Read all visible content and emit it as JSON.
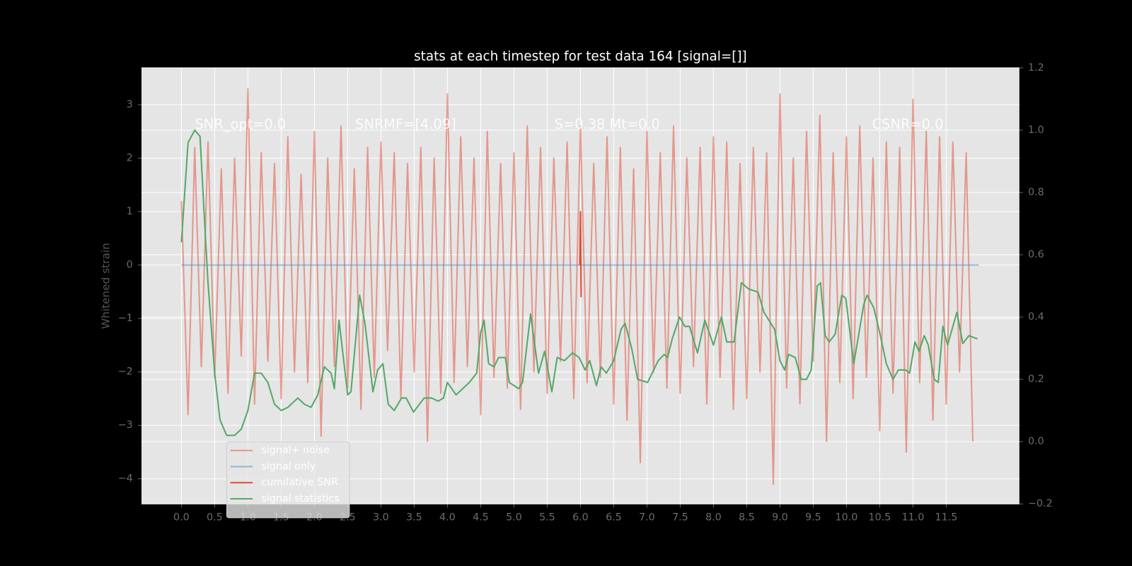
{
  "chart_data": {
    "type": "line",
    "title": "stats at each timestep for test data 164 [signal=[]]",
    "ylabel": "Whitened strain",
    "annotations": [
      "SNR_opt=0.0",
      "SNRMF=[4.09]",
      "S=0.38   Mt=0.0",
      "CSNR=0.0"
    ],
    "xlim": [
      -0.6,
      12.6
    ],
    "ylim": [
      -4.47,
      3.69
    ],
    "y2lim": [
      -0.2,
      1.2
    ],
    "xticks": [
      {
        "value": 0,
        "label": "0.0"
      },
      {
        "value": 0.5,
        "label": "0.5"
      },
      {
        "value": 1,
        "label": "1.0"
      },
      {
        "value": 1.5,
        "label": "1.5"
      },
      {
        "value": 2,
        "label": "2.0"
      },
      {
        "value": 2.5,
        "label": "2.5"
      },
      {
        "value": 3,
        "label": "3.0"
      },
      {
        "value": 3.5,
        "label": "3.5"
      },
      {
        "value": 4,
        "label": "4.0"
      },
      {
        "value": 4.5,
        "label": "4.5"
      },
      {
        "value": 5,
        "label": "5.0"
      },
      {
        "value": 5.5,
        "label": "5.5"
      },
      {
        "value": 6,
        "label": "6.0"
      },
      {
        "value": 6.5,
        "label": "6.5"
      },
      {
        "value": 7,
        "label": "7.0"
      },
      {
        "value": 7.5,
        "label": "7.5"
      },
      {
        "value": 8,
        "label": "8.0"
      },
      {
        "value": 8.5,
        "label": "8.5"
      },
      {
        "value": 9,
        "label": "9.0"
      },
      {
        "value": 9.5,
        "label": "9.5"
      },
      {
        "value": 10,
        "label": "10.0"
      },
      {
        "value": 10.5,
        "label": "10.5"
      },
      {
        "value": 11,
        "label": "11.0"
      },
      {
        "value": 11.5,
        "label": "11.5"
      }
    ],
    "yticks": [
      {
        "value": -4,
        "label": "−4"
      },
      {
        "value": -3,
        "label": "−3"
      },
      {
        "value": -2,
        "label": "−2"
      },
      {
        "value": -1,
        "label": "−1"
      },
      0,
      1,
      2,
      3
    ],
    "y2ticks": [
      {
        "value": -0.2,
        "label": "−0.2"
      },
      {
        "value": 0,
        "label": "0.0"
      },
      {
        "value": 0.2,
        "label": "0.2"
      },
      {
        "value": 0.4,
        "label": "0.4"
      },
      {
        "value": 0.6,
        "label": "0.6"
      },
      {
        "value": 0.8,
        "label": "0.8"
      },
      {
        "value": 1.0,
        "label": "1.0"
      },
      {
        "value": 1.2,
        "label": "1.2"
      }
    ],
    "grid": true,
    "legend": "lower left",
    "series": [
      {
        "name": "signal+ noise",
        "color": "#e24a33",
        "opacity": 0.5,
        "x": [
          0,
          0.1,
          0.2,
          0.3,
          0.4,
          0.5,
          0.6,
          0.7,
          0.8,
          0.9,
          1,
          1.1,
          1.2,
          1.3,
          1.4,
          1.5,
          1.6,
          1.7,
          1.8,
          1.9,
          2,
          2.1,
          2.2,
          2.3,
          2.4,
          2.5,
          2.6,
          2.7,
          2.8,
          2.9,
          3,
          3.1,
          3.2,
          3.3,
          3.4,
          3.5,
          3.6,
          3.7,
          3.8,
          3.9,
          4,
          4.1,
          4.2,
          4.3,
          4.4,
          4.5,
          4.6,
          4.7,
          4.8,
          4.9,
          5,
          5.1,
          5.2,
          5.3,
          5.4,
          5.5,
          5.6,
          5.7,
          5.8,
          5.9,
          6,
          6.1,
          6.2,
          6.3,
          6.4,
          6.5,
          6.6,
          6.7,
          6.8,
          6.9,
          7,
          7.1,
          7.2,
          7.3,
          7.4,
          7.5,
          7.6,
          7.7,
          7.8,
          7.9,
          8,
          8.1,
          8.2,
          8.3,
          8.4,
          8.5,
          8.6,
          8.7,
          8.8,
          8.9,
          9,
          9.1,
          9.2,
          9.3,
          9.4,
          9.5,
          9.6,
          9.7,
          9.8,
          9.9,
          10,
          10.1,
          10.2,
          10.3,
          10.4,
          10.5,
          10.6,
          10.7,
          10.8,
          10.9,
          11,
          11.1,
          11.2,
          11.3,
          11.4,
          11.5,
          11.6,
          11.7,
          11.8,
          11.9
        ],
        "values": [
          1.2,
          -2.8,
          2.2,
          -1.9,
          2.3,
          -2.1,
          1.8,
          -2.4,
          2.0,
          -1.7,
          3.3,
          -2.6,
          2.1,
          -1.8,
          1.9,
          -2.5,
          2.4,
          -2.0,
          1.7,
          -2.2,
          2.5,
          -3.2,
          2.0,
          -1.9,
          2.6,
          -2.3,
          1.8,
          -2.7,
          2.2,
          -2.1,
          2.3,
          -1.6,
          2.1,
          -2.5,
          1.9,
          -2.0,
          2.2,
          -3.3,
          2.0,
          -2.4,
          3.2,
          -2.2,
          2.4,
          -1.9,
          2.0,
          -2.8,
          2.5,
          -2.1,
          1.9,
          -2.3,
          2.1,
          -2.7,
          2.6,
          -2.0,
          2.2,
          -2.4,
          2.0,
          -1.8,
          2.3,
          -2.5,
          2.6,
          -2.2,
          1.9,
          -2.1,
          2.4,
          -2.6,
          2.2,
          -2.9,
          1.8,
          -3.7,
          2.5,
          -2.0,
          2.1,
          -2.3,
          2.6,
          -2.4,
          2.0,
          -1.9,
          2.2,
          -2.6,
          2.4,
          -2.1,
          2.3,
          -2.7,
          1.9,
          -2.5,
          2.2,
          -2.0,
          2.1,
          -4.1,
          3.2,
          -2.3,
          2.0,
          -2.6,
          2.5,
          -1.8,
          2.8,
          -3.3,
          2.1,
          -2.2,
          2.4,
          -2.5,
          2.6,
          -2.1,
          2.0,
          -3.1,
          2.3,
          -2.4,
          2.2,
          -3.5,
          3.1,
          -2.2,
          2.5,
          -2.9,
          2.4,
          -2.6,
          2.3,
          -2.0,
          2.1,
          -3.3
        ]
      },
      {
        "name": "signal only",
        "color": "#348abd",
        "opacity": 0.5,
        "x": [
          0,
          11.99
        ],
        "values": [
          0,
          0
        ]
      },
      {
        "name": "cumilative SNR",
        "color": "#e24a33",
        "opacity": 1,
        "x": [
          5.99,
          6.0,
          6.01
        ],
        "values": [
          0,
          1.0,
          -0.6
        ]
      },
      {
        "name": "signal statistics",
        "color": "#55a868",
        "opacity": 1,
        "axis": "y2",
        "x": [
          0,
          0.1,
          0.2,
          0.28,
          0.35,
          0.4,
          0.5,
          0.58,
          0.68,
          0.8,
          0.9,
          1.0,
          1.1,
          1.2,
          1.3,
          1.4,
          1.5,
          1.6,
          1.75,
          1.85,
          1.95,
          2.05,
          2.15,
          2.25,
          2.3,
          2.37,
          2.5,
          2.55,
          2.68,
          2.76,
          2.88,
          2.95,
          3.03,
          3.11,
          3.2,
          3.31,
          3.38,
          3.49,
          3.65,
          3.76,
          3.86,
          3.94,
          4.0,
          4.13,
          4.33,
          4.44,
          4.5,
          4.55,
          4.62,
          4.7,
          4.77,
          4.87,
          4.93,
          5.07,
          5.13,
          5.25,
          5.37,
          5.46,
          5.57,
          5.65,
          5.76,
          5.88,
          5.98,
          6.07,
          6.14,
          6.24,
          6.31,
          6.39,
          6.5,
          6.61,
          6.67,
          6.77,
          6.86,
          7.01,
          7.17,
          7.26,
          7.31,
          7.38,
          7.49,
          7.57,
          7.64,
          7.76,
          7.87,
          8.0,
          8.12,
          8.2,
          8.31,
          8.42,
          8.53,
          8.67,
          8.76,
          8.92,
          9.0,
          9.07,
          9.13,
          9.23,
          9.32,
          9.4,
          9.47,
          9.56,
          9.61,
          9.68,
          9.74,
          9.83,
          9.93,
          9.99,
          10.11,
          10.26,
          10.31,
          10.41,
          10.5,
          10.6,
          10.7,
          10.78,
          10.89,
          10.95,
          11.03,
          11.09,
          11.17,
          11.23,
          11.32,
          11.38,
          11.45,
          11.52,
          11.66,
          11.75,
          11.84,
          11.97
        ],
        "values": [
          0.64,
          0.96,
          1.0,
          0.98,
          0.7,
          0.51,
          0.22,
          0.07,
          0.02,
          0.02,
          0.04,
          0.1,
          0.22,
          0.22,
          0.19,
          0.12,
          0.1,
          0.11,
          0.14,
          0.12,
          0.11,
          0.15,
          0.24,
          0.22,
          0.17,
          0.39,
          0.15,
          0.16,
          0.47,
          0.38,
          0.16,
          0.23,
          0.25,
          0.12,
          0.1,
          0.14,
          0.14,
          0.095,
          0.14,
          0.14,
          0.13,
          0.14,
          0.19,
          0.15,
          0.19,
          0.22,
          0.35,
          0.39,
          0.25,
          0.24,
          0.27,
          0.27,
          0.19,
          0.17,
          0.19,
          0.41,
          0.22,
          0.29,
          0.16,
          0.27,
          0.26,
          0.285,
          0.27,
          0.23,
          0.26,
          0.18,
          0.24,
          0.22,
          0.26,
          0.36,
          0.38,
          0.3,
          0.2,
          0.19,
          0.26,
          0.28,
          0.27,
          0.33,
          0.4,
          0.37,
          0.37,
          0.285,
          0.39,
          0.31,
          0.4,
          0.32,
          0.32,
          0.51,
          0.49,
          0.48,
          0.415,
          0.36,
          0.26,
          0.23,
          0.28,
          0.27,
          0.2,
          0.2,
          0.23,
          0.5,
          0.51,
          0.34,
          0.32,
          0.345,
          0.47,
          0.46,
          0.25,
          0.44,
          0.47,
          0.43,
          0.35,
          0.25,
          0.2,
          0.23,
          0.23,
          0.22,
          0.32,
          0.29,
          0.34,
          0.31,
          0.2,
          0.19,
          0.37,
          0.31,
          0.415,
          0.315,
          0.34,
          0.33
        ]
      }
    ]
  }
}
